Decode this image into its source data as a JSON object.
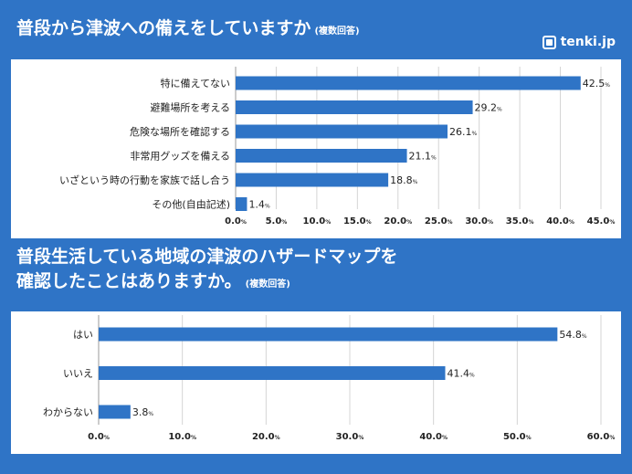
{
  "brand": {
    "name": "tenki.jp",
    "icon": "tenki-logo-icon"
  },
  "colors": {
    "background": "#2f74c6",
    "bar": "#2f74c6",
    "panel": "#ffffff",
    "grid": "#d4d4d4"
  },
  "chart_data": [
    {
      "type": "bar",
      "orientation": "horizontal",
      "title": "普段から津波への備えをしていますか",
      "title_note": "(複数回答)",
      "categories": [
        "特に備えてない",
        "避難場所を考える",
        "危険な場所を確認する",
        "非常用グッズを備える",
        "いざという時の行動を家族で話し合う",
        "その他(自由記述)"
      ],
      "values": [
        42.5,
        29.2,
        26.1,
        21.1,
        18.8,
        1.4
      ],
      "value_unit": "%",
      "xlim": [
        0,
        45
      ],
      "ticks": [
        0,
        5,
        10,
        15,
        20,
        25,
        30,
        35,
        40,
        45
      ],
      "tick_unit": "%",
      "grid": true
    },
    {
      "type": "bar",
      "orientation": "horizontal",
      "title_lines": [
        "普段生活している地域の津波のハザードマップを",
        "確認したことはありますか。"
      ],
      "title_note": "(複数回答)",
      "categories": [
        "はい",
        "いいえ",
        "わからない"
      ],
      "values": [
        54.8,
        41.4,
        3.8
      ],
      "value_unit": "%",
      "xlim": [
        0,
        60
      ],
      "ticks": [
        0,
        10,
        20,
        30,
        40,
        50,
        60
      ],
      "tick_unit": "%",
      "grid": true
    }
  ]
}
